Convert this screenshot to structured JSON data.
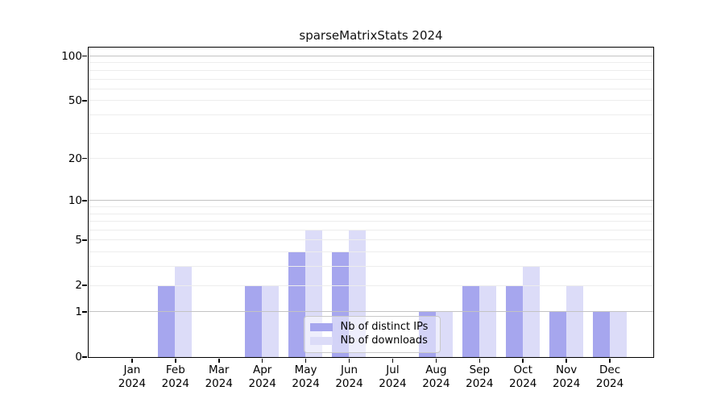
{
  "title": "sparseMatrixStats 2024",
  "legend": {
    "items": [
      {
        "label": "Nb of distinct IPs",
        "color": "#a6a6ee"
      },
      {
        "label": "Nb of downloads",
        "color": "#dcdcf8"
      }
    ]
  },
  "colors": {
    "distinct_ips_bar": "#a6a6ee",
    "downloads_bar": "#dcdcf8",
    "decade_gridline": "#c3c3c3",
    "minor_gridline": "#ededed",
    "axis": "#000000",
    "legend_border": "#c9c9c9"
  },
  "chart_data": {
    "type": "bar",
    "title": "sparseMatrixStats 2024",
    "categories": [
      "Jan 2024",
      "Feb 2024",
      "Mar 2024",
      "Apr 2024",
      "May 2024",
      "Jun 2024",
      "Jul 2024",
      "Aug 2024",
      "Sep 2024",
      "Oct 2024",
      "Nov 2024",
      "Dec 2024"
    ],
    "series": [
      {
        "name": "Nb of distinct IPs",
        "color": "#a6a6ee",
        "values": [
          0,
          2,
          0,
          2,
          4,
          4,
          0,
          1,
          2,
          2,
          1,
          1
        ]
      },
      {
        "name": "Nb of downloads",
        "color": "#dcdcf8",
        "values": [
          0,
          3,
          0,
          2,
          6,
          6,
          0,
          1,
          2,
          3,
          2,
          1
        ]
      }
    ],
    "xlabel": "",
    "ylabel": "",
    "yscale": "log1p",
    "ylim": [
      0,
      114
    ],
    "y_ticks": [
      0,
      1,
      2,
      5,
      10,
      20,
      50,
      100
    ],
    "y_minor_gridlines": [
      3,
      4,
      6,
      7,
      8,
      9,
      30,
      40,
      60,
      70,
      80,
      90
    ],
    "y_decade_gridlines": [
      1,
      10,
      100
    ],
    "grid": true,
    "legend_position": "lower center inside"
  }
}
